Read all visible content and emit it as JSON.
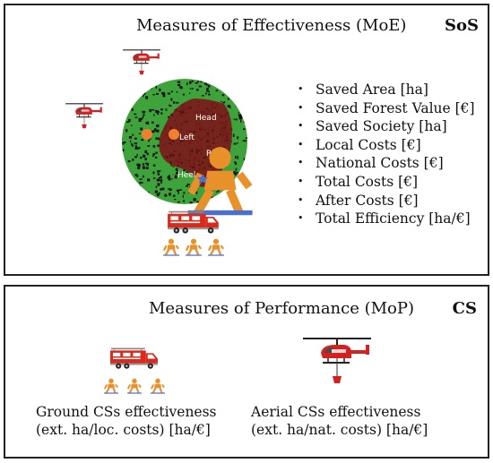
{
  "sos_panel": {
    "title": "Measures of Effectiveness (MoE)",
    "tag": "SoS",
    "measures": [
      "Saved Area [ha]",
      "Saved Forest Value [€]",
      "Saved Society [ha]",
      "Local Costs [€]",
      "National Costs [€]",
      "Total Costs [€]",
      "After Costs [€]",
      "Total Efficiency [ha/€]"
    ],
    "fire_labels": {
      "head": "Head",
      "left": "Left",
      "right": "Right",
      "heel": "Heel"
    }
  },
  "cs_panel": {
    "title": "Measures of Performance (MoP)",
    "tag": "CS",
    "ground": {
      "caption_line1": "Ground CSs effectiveness",
      "caption_line2": "(ext. ha/loc. costs) [ha/€]"
    },
    "aerial": {
      "caption_line1": "Aerial CSs effectiveness",
      "caption_line2": "(ext. ha/nat. costs) [ha/€]"
    }
  },
  "colors": {
    "border": "#222222",
    "forest_green": "#3da33a",
    "burnt_area": "#7a1a1a",
    "helicopter_red": "#d32020",
    "truck_red": "#d92a1c",
    "firefighter_orange": "#e8902a",
    "agent_orange": "#f08030",
    "agent_blue": "#4a6fd0"
  },
  "icons": [
    "helicopter-icon",
    "fire-truck-icon",
    "firefighter-icon",
    "forest-map"
  ]
}
